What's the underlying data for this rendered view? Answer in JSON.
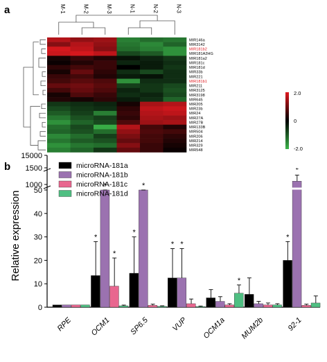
{
  "panel_a": {
    "letter": "a",
    "columns": [
      "M-1",
      "M-2",
      "M-3",
      "N-1",
      "N-2",
      "N-3"
    ],
    "rows": [
      {
        "name": "MIR146a",
        "highlight": false
      },
      {
        "name": "MIR3142",
        "highlight": false
      },
      {
        "name": "MIR181b2",
        "highlight": true
      },
      {
        "name": "MIR181A2HG",
        "highlight": false
      },
      {
        "name": "MIR181a2",
        "highlight": false
      },
      {
        "name": "MIR181c",
        "highlight": false
      },
      {
        "name": "MIR181d",
        "highlight": false
      },
      {
        "name": "MIR33b",
        "highlight": false
      },
      {
        "name": "MIR221",
        "highlight": false
      },
      {
        "name": "MIR181b1",
        "highlight": true
      },
      {
        "name": "MIR211",
        "highlight": false
      },
      {
        "name": "MIR3125",
        "highlight": false
      },
      {
        "name": "MIR3198",
        "highlight": false
      },
      {
        "name": "MIR645",
        "highlight": false
      },
      {
        "name": "MIR205",
        "highlight": false
      },
      {
        "name": "MIR23b",
        "highlight": false
      },
      {
        "name": "MIR24",
        "highlight": false
      },
      {
        "name": "MIR27A",
        "highlight": false
      },
      {
        "name": "MIR27B",
        "highlight": false
      },
      {
        "name": "MIR133B",
        "highlight": false
      },
      {
        "name": "MIR504",
        "highlight": false
      },
      {
        "name": "MIR206",
        "highlight": false
      },
      {
        "name": "MIR214",
        "highlight": false
      },
      {
        "name": "MIR329",
        "highlight": false
      },
      {
        "name": "MIR548",
        "highlight": false
      }
    ],
    "colorbar": {
      "max_label": "2.0",
      "mid_label": "0",
      "min_label": "-2.0",
      "high_color": "#e0191f",
      "mid_color": "#000000",
      "low_color": "#3bb54a"
    },
    "highlight_color": "#e0191f"
  },
  "chart_data": [
    {
      "type": "heatmap",
      "x": [
        "M-1",
        "M-2",
        "M-3",
        "N-1",
        "N-2",
        "N-3"
      ],
      "y": [
        "MIR146a",
        "MIR3142",
        "MIR181b2",
        "MIR181A2HG",
        "MIR181a2",
        "MIR181c",
        "MIR181d",
        "MIR33b",
        "MIR221",
        "MIR181b1",
        "MIR211",
        "MIR3125",
        "MIR3198",
        "MIR645",
        "MIR205",
        "MIR23b",
        "MIR24",
        "MIR27A",
        "MIR27B",
        "MIR133B",
        "MIR504",
        "MIR206",
        "MIR214",
        "MIR329",
        "MIR548"
      ],
      "range": [
        -2.0,
        2.0
      ],
      "values": [
        [
          1.6,
          1.3,
          1.4,
          -1.4,
          -1.2,
          -1.3
        ],
        [
          1.2,
          1.6,
          1.3,
          -1.3,
          -1.5,
          -1.1
        ],
        [
          1.9,
          1.7,
          1.2,
          -1.2,
          -1.4,
          -1.6
        ],
        [
          1.8,
          1.9,
          1.7,
          -0.8,
          -1.0,
          -1.6
        ],
        [
          0.2,
          0.5,
          0.3,
          -0.2,
          -0.4,
          -0.6
        ],
        [
          0.1,
          0.3,
          0.5,
          -0.4,
          -0.3,
          -0.5
        ],
        [
          0.4,
          0.6,
          0.5,
          0.0,
          -0.3,
          -0.6
        ],
        [
          0.2,
          0.9,
          0.4,
          -0.5,
          -0.8,
          -0.5
        ],
        [
          0.5,
          0.6,
          0.3,
          -0.3,
          -0.2,
          -0.5
        ],
        [
          0.6,
          0.8,
          0.7,
          -1.6,
          -0.5,
          -0.5
        ],
        [
          0.9,
          1.0,
          0.8,
          -0.7,
          -0.6,
          -0.8
        ],
        [
          0.6,
          0.9,
          0.7,
          -0.4,
          -0.6,
          -0.9
        ],
        [
          0.2,
          0.7,
          0.5,
          -0.5,
          -0.4,
          -0.8
        ],
        [
          0.3,
          0.2,
          0.4,
          -0.3,
          -0.5,
          -1.1
        ],
        [
          -0.6,
          -0.5,
          -0.4,
          0.2,
          1.5,
          1.6
        ],
        [
          -0.8,
          -0.6,
          -0.5,
          0.4,
          1.7,
          1.8
        ],
        [
          -1.0,
          -0.7,
          -1.4,
          0.5,
          1.6,
          1.7
        ],
        [
          -1.3,
          -0.9,
          -0.7,
          0.4,
          1.5,
          1.4
        ],
        [
          -1.6,
          -1.1,
          -0.8,
          0.7,
          1.4,
          1.5
        ],
        [
          -1.2,
          -0.8,
          -1.9,
          1.6,
          0.6,
          0.3
        ],
        [
          -1.1,
          -0.9,
          -1.2,
          1.3,
          0.7,
          0.6
        ],
        [
          -1.5,
          -1.2,
          -0.7,
          1.1,
          0.6,
          0.4
        ],
        [
          -1.3,
          -1.0,
          -0.9,
          0.9,
          0.6,
          0.3
        ],
        [
          -1.6,
          -1.3,
          -1.2,
          1.2,
          0.5,
          0.2
        ],
        [
          -1.4,
          -1.1,
          -0.6,
          0.9,
          0.5,
          0.1
        ]
      ]
    },
    {
      "type": "bar",
      "ylabel": "Relative expression",
      "categories": [
        "RPE",
        "OCM1",
        "SP6.5",
        "VUP",
        "OCM1a",
        "MUM2b",
        "92-1"
      ],
      "y_ticks": [
        "0",
        "10",
        "20",
        "30",
        "40",
        "50",
        "1000",
        "1500",
        "15000"
      ],
      "y_scale": "broken: linear 0-50, break to 1000-1500, break to 15000",
      "series": [
        {
          "name": "microRNA-181a",
          "color": "#000000",
          "values": [
            1,
            13.5,
            14.5,
            12.5,
            4,
            5.5,
            20
          ],
          "errors": [
            0,
            14.5,
            15.5,
            12.5,
            3.5,
            7,
            8
          ],
          "significant": [
            false,
            true,
            true,
            true,
            false,
            false,
            true
          ]
        },
        {
          "name": "microRNA-181b",
          "color": "#9b72b0",
          "values": [
            1,
            52,
            53,
            12.5,
            2.5,
            1.5,
            1100
          ],
          "errors": [
            0,
            1.5,
            1.5,
            12.5,
            2,
            1,
            180
          ],
          "significant": [
            false,
            true,
            true,
            true,
            false,
            false,
            true
          ]
        },
        {
          "name": "microRNA-181c",
          "color": "#e8668f",
          "values": [
            1,
            9,
            0.8,
            1.5,
            1,
            1,
            0.8
          ],
          "errors": [
            0,
            12,
            0.5,
            2,
            0.5,
            0.8,
            0.5
          ],
          "significant": [
            false,
            true,
            false,
            false,
            false,
            false,
            false
          ]
        },
        {
          "name": "microRNA-181d",
          "color": "#4fbf82",
          "values": [
            1,
            0.6,
            0.4,
            0.3,
            6,
            1,
            1.8
          ],
          "errors": [
            0,
            0.3,
            0.2,
            0.2,
            3.5,
            0.5,
            3
          ],
          "significant": [
            false,
            false,
            false,
            false,
            true,
            false,
            false
          ]
        }
      ],
      "significance_marker": "*",
      "legend": "top-left"
    }
  ],
  "panel_b": {
    "letter": "b"
  }
}
